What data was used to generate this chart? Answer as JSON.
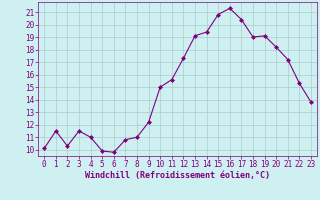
{
  "x": [
    0,
    1,
    2,
    3,
    4,
    5,
    6,
    7,
    8,
    9,
    10,
    11,
    12,
    13,
    14,
    15,
    16,
    17,
    18,
    19,
    20,
    21,
    22,
    23
  ],
  "y": [
    10.1,
    11.5,
    10.3,
    11.5,
    11.0,
    9.9,
    9.8,
    10.8,
    11.0,
    12.2,
    15.0,
    15.6,
    17.3,
    19.1,
    19.4,
    20.8,
    21.3,
    20.4,
    19.0,
    19.1,
    18.2,
    17.2,
    15.3,
    13.8
  ],
  "line_color": "#800080",
  "marker": "D",
  "marker_size": 2.0,
  "bg_color": "#cff0f0",
  "grid_color": "#aacccc",
  "xlabel": "Windchill (Refroidissement éolien,°C)",
  "xlabel_color": "#800080",
  "tick_color": "#800080",
  "ylim": [
    9.5,
    21.8
  ],
  "xlim": [
    -0.5,
    23.5
  ],
  "yticks": [
    10,
    11,
    12,
    13,
    14,
    15,
    16,
    17,
    18,
    19,
    20,
    21
  ],
  "xticks": [
    0,
    1,
    2,
    3,
    4,
    5,
    6,
    7,
    8,
    9,
    10,
    11,
    12,
    13,
    14,
    15,
    16,
    17,
    18,
    19,
    20,
    21,
    22,
    23
  ],
  "tick_fontsize": 5.5,
  "xlabel_fontsize": 6.0
}
